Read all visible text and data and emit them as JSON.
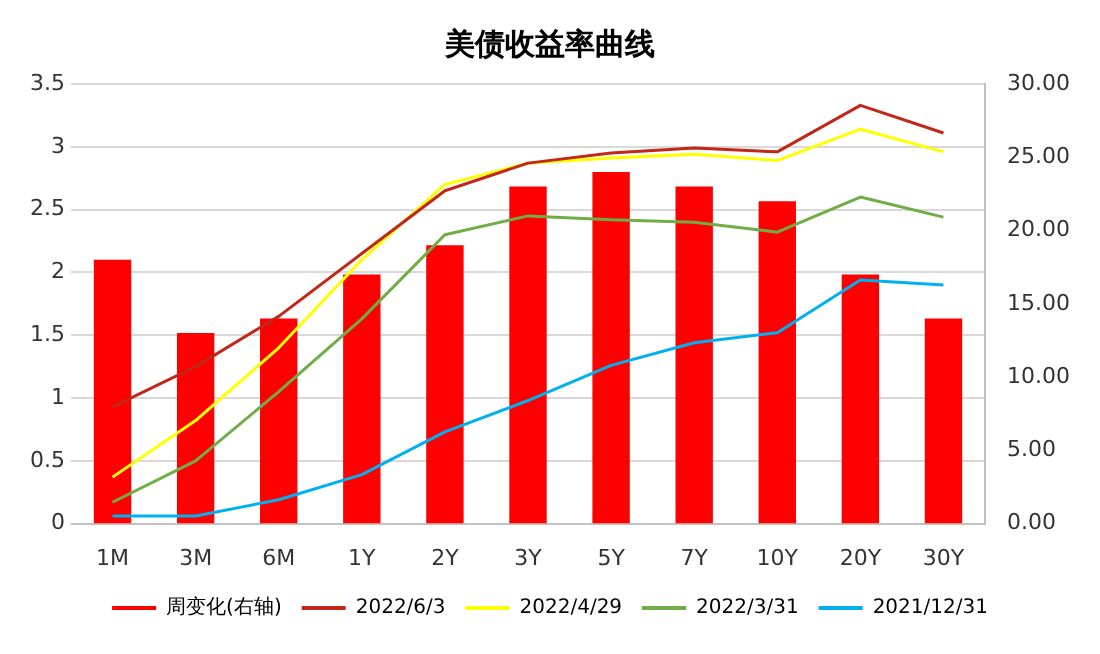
{
  "chart_data": {
    "type": "bar",
    "title": "美债收益率曲线",
    "categories": [
      "1M",
      "3M",
      "6M",
      "1Y",
      "2Y",
      "3Y",
      "5Y",
      "7Y",
      "10Y",
      "20Y",
      "30Y"
    ],
    "series": [
      {
        "name": "周变化(右轴)",
        "axis": "y2",
        "color": "#ff0000",
        "values": [
          18,
          13,
          14,
          17,
          19,
          23,
          24,
          23,
          22,
          17,
          14
        ]
      },
      {
        "name": "2022/6/3",
        "type": "line",
        "color": "#c0281a",
        "values": [
          0.93,
          1.25,
          1.65,
          2.15,
          2.65,
          2.87,
          2.95,
          2.99,
          2.96,
          3.33,
          3.11
        ]
      },
      {
        "name": "2022/4/29",
        "type": "line",
        "color": "#ffff00",
        "values": [
          0.37,
          0.82,
          1.4,
          2.1,
          2.7,
          2.87,
          2.91,
          2.94,
          2.89,
          3.14,
          2.96
        ]
      },
      {
        "name": "2022/3/31",
        "type": "line",
        "color": "#70ad47",
        "values": [
          0.17,
          0.5,
          1.05,
          1.63,
          2.3,
          2.45,
          2.42,
          2.4,
          2.32,
          2.6,
          2.44
        ]
      },
      {
        "name": "2021/12/31",
        "type": "line",
        "color": "#00b0f0",
        "values": [
          0.06,
          0.06,
          0.19,
          0.39,
          0.73,
          0.98,
          1.26,
          1.44,
          1.52,
          1.94,
          1.9
        ]
      }
    ],
    "ylim": [
      0,
      3.5
    ],
    "yticks": [
      0,
      0.5,
      1,
      1.5,
      2,
      2.5,
      3,
      3.5
    ],
    "y2lim": [
      0,
      30
    ],
    "y2ticks": [
      {
        "value": 0,
        "label": "0.00"
      },
      {
        "value": 5,
        "label": "5.00"
      },
      {
        "value": 10,
        "label": "10.00"
      },
      {
        "value": 15,
        "label": "15.00"
      },
      {
        "value": 20,
        "label": "20.00"
      },
      {
        "value": 25,
        "label": "25.00"
      },
      {
        "value": 30,
        "label": "30.00"
      }
    ],
    "grid": "y",
    "legend": "bottom",
    "marker": "none",
    "line_style": "solid"
  }
}
